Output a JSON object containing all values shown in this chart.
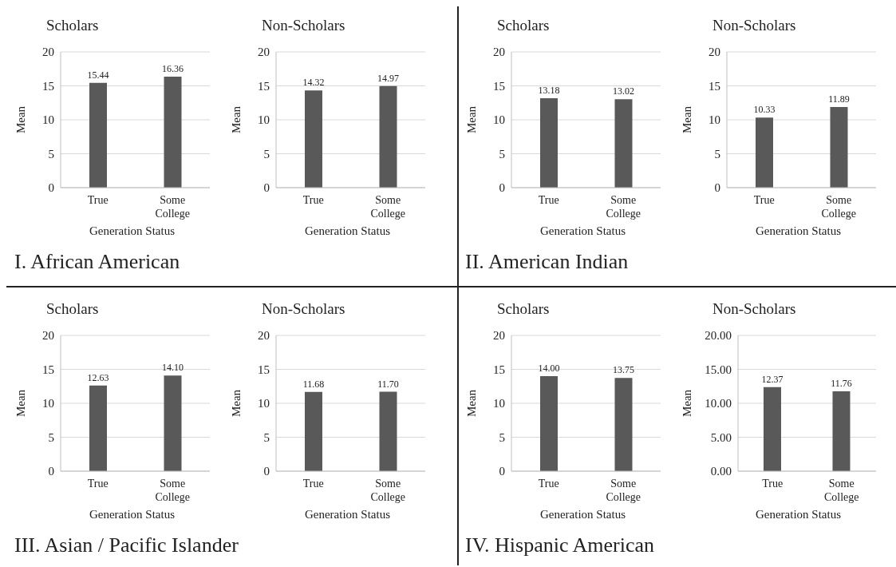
{
  "chart_data": [
    {
      "type": "bar",
      "title": "Scholars",
      "categories": [
        "True",
        "Some College"
      ],
      "values": [
        15.44,
        16.36
      ],
      "value_labels": [
        "15.44",
        "16.36"
      ],
      "color": "#595959",
      "ylim": [
        0,
        20
      ],
      "yticks": [
        0,
        5,
        10,
        15,
        20
      ],
      "grid": "y",
      "xlabel": "Generation Status",
      "ylabel": "Mean",
      "annotations": [
        "I. African American"
      ]
    },
    {
      "type": "bar",
      "title": "Non-Scholars",
      "categories": [
        "True",
        "Some College"
      ],
      "values": [
        14.32,
        14.97
      ],
      "value_labels": [
        "14.32",
        "14.97"
      ],
      "color": "#595959",
      "ylim": [
        0,
        20
      ],
      "yticks": [
        0,
        5,
        10,
        15,
        20
      ],
      "grid": "y",
      "xlabel": "Generation Status",
      "ylabel": "Mean"
    },
    {
      "type": "bar",
      "title": "Scholars",
      "categories": [
        "True",
        "Some College"
      ],
      "values": [
        13.18,
        13.02
      ],
      "value_labels": [
        "13.18",
        "13.02"
      ],
      "color": "#595959",
      "ylim": [
        0,
        20
      ],
      "yticks": [
        0,
        5,
        10,
        15,
        20
      ],
      "grid": "y",
      "xlabel": "Generation Status",
      "ylabel": "Mean",
      "annotations": [
        "II. American Indian"
      ]
    },
    {
      "type": "bar",
      "title": "Non-Scholars",
      "categories": [
        "True",
        "Some College"
      ],
      "values": [
        10.33,
        11.89
      ],
      "value_labels": [
        "10.33",
        "11.89"
      ],
      "color": "#595959",
      "ylim": [
        0,
        20
      ],
      "yticks": [
        0,
        5,
        10,
        15,
        20
      ],
      "grid": "y",
      "xlabel": "Generation Status",
      "ylabel": "Mean"
    },
    {
      "type": "bar",
      "title": "Scholars",
      "categories": [
        "True",
        "Some College"
      ],
      "values": [
        12.63,
        14.1
      ],
      "value_labels": [
        "12.63",
        "14.10"
      ],
      "color": "#595959",
      "ylim": [
        0,
        20
      ],
      "yticks": [
        0,
        5,
        10,
        15,
        20
      ],
      "grid": "y",
      "xlabel": "Generation Status",
      "ylabel": "Mean",
      "annotations": [
        "III. Asian / Pacific Islander"
      ]
    },
    {
      "type": "bar",
      "title": "Non-Scholars",
      "categories": [
        "True",
        "Some College"
      ],
      "values": [
        11.68,
        11.7
      ],
      "value_labels": [
        "11.68",
        "11.70"
      ],
      "color": "#595959",
      "ylim": [
        0,
        20
      ],
      "yticks": [
        0,
        5,
        10,
        15,
        20
      ],
      "grid": "y",
      "xlabel": "Generation Status",
      "ylabel": "Mean"
    },
    {
      "type": "bar",
      "title": "Scholars",
      "categories": [
        "True",
        "Some College"
      ],
      "values": [
        14,
        13.75
      ],
      "value_labels": [
        "14.00",
        "13.75"
      ],
      "color": "#595959",
      "ylim": [
        0,
        20
      ],
      "yticks": [
        0,
        5,
        10,
        15,
        20
      ],
      "grid": "y",
      "xlabel": "Generation Status",
      "ylabel": "Mean",
      "annotations": [
        "IV. Hispanic American"
      ]
    },
    {
      "type": "bar",
      "title": "Non-Scholars",
      "categories": [
        "True",
        "Some College"
      ],
      "values": [
        12.37,
        11.76
      ],
      "value_labels": [
        "12.37",
        "11.76"
      ],
      "color": "#595959",
      "ylim": [
        0,
        20
      ],
      "yticks": [
        {
          "value": 0,
          "label": "0.00"
        },
        {
          "value": 5,
          "label": "5.00"
        },
        {
          "value": 10,
          "label": "10.00"
        },
        {
          "value": 15,
          "label": "15.00"
        },
        {
          "value": 20,
          "label": "20.00"
        }
      ],
      "grid": "y",
      "xlabel": "Generation Status",
      "ylabel": "Mean"
    }
  ]
}
